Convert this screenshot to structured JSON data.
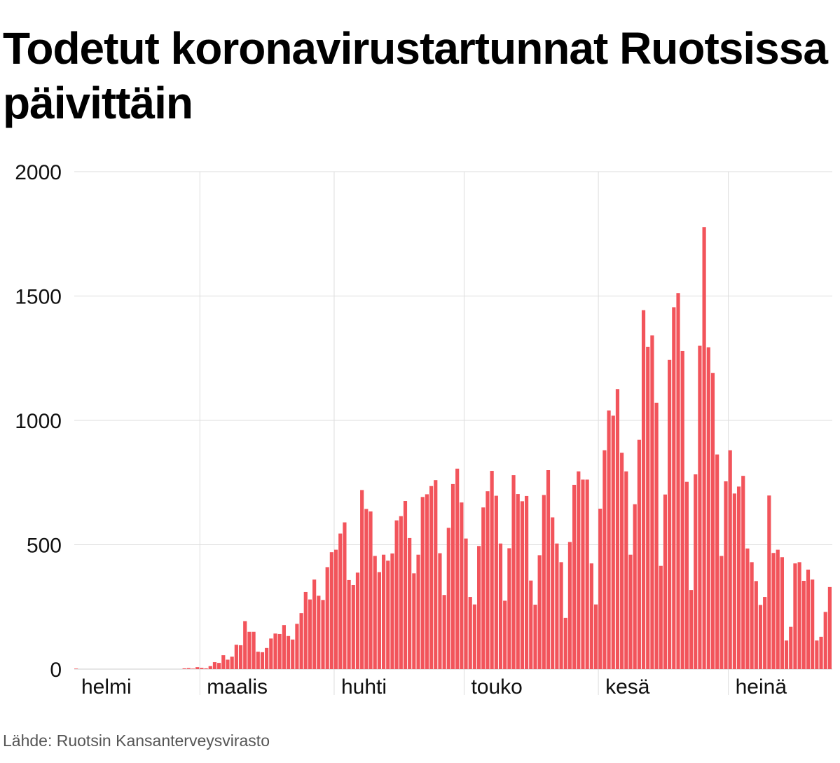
{
  "chart_data": {
    "type": "bar",
    "title": "Todetut koronavirustartunnat Ruotsissa päivittäin",
    "source": "Lähde: Ruotsin Kansanterveysvirasto",
    "xlabel": "",
    "ylabel": "",
    "ylim": [
      0,
      2000
    ],
    "yticks": [
      0,
      500,
      1000,
      1500,
      2000
    ],
    "grid": true,
    "bar_color": "#f2545b",
    "x_start": "2020-02-01",
    "months": [
      {
        "label": "helmi",
        "start": "2020-02-01"
      },
      {
        "label": "maalis",
        "start": "2020-03-01"
      },
      {
        "label": "huhti",
        "start": "2020-04-01"
      },
      {
        "label": "touko",
        "start": "2020-05-01"
      },
      {
        "label": "kesä",
        "start": "2020-06-01"
      },
      {
        "label": "heinä",
        "start": "2020-07-01"
      }
    ],
    "values": [
      2,
      0,
      0,
      0,
      0,
      0,
      0,
      0,
      0,
      0,
      0,
      0,
      0,
      0,
      0,
      0,
      0,
      0,
      0,
      0,
      0,
      0,
      0,
      0,
      0,
      3,
      4,
      2,
      8,
      5,
      3,
      12,
      28,
      25,
      56,
      38,
      50,
      98,
      96,
      193,
      150,
      150,
      70,
      68,
      85,
      123,
      143,
      141,
      177,
      133,
      119,
      182,
      225,
      310,
      280,
      360,
      295,
      278,
      410,
      470,
      480,
      545,
      590,
      358,
      338,
      388,
      720,
      644,
      634,
      455,
      390,
      460,
      436,
      465,
      598,
      615,
      676,
      527,
      385,
      460,
      692,
      703,
      736,
      760,
      466,
      298,
      568,
      744,
      806,
      670,
      525,
      290,
      260,
      495,
      650,
      715,
      797,
      697,
      505,
      275,
      486,
      780,
      704,
      675,
      696,
      356,
      259,
      458,
      700,
      800,
      610,
      505,
      430,
      206,
      511,
      741,
      795,
      762,
      762,
      425,
      260,
      645,
      880,
      1040,
      1019,
      1126,
      870,
      795,
      460,
      663,
      922,
      1443,
      1296,
      1342,
      1071,
      415,
      702,
      1243,
      1455,
      1512,
      1279,
      753,
      318,
      783,
      1300,
      1777,
      1294,
      1191,
      863,
      455,
      755,
      880,
      706,
      734,
      777,
      485,
      430,
      354,
      258,
      290,
      698,
      467,
      480,
      450,
      115,
      170,
      425,
      430,
      355,
      400,
      360,
      115,
      130,
      230,
      330
    ]
  }
}
